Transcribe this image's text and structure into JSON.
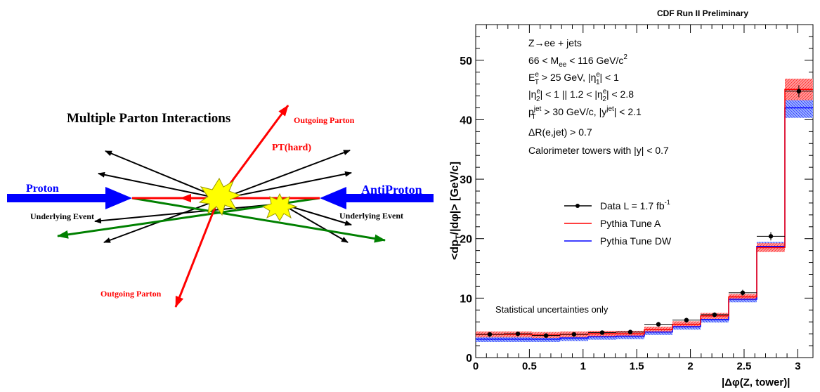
{
  "diagram": {
    "title": "Multiple Parton Interactions",
    "proton_label": "Proton",
    "antiproton_label": "AntiProton",
    "ue_left": "Underlying Event",
    "ue_right": "Underlying Event",
    "outgoing_top": "Outgoing Parton",
    "outgoing_bottom": "Outgoing Parton",
    "pt_hard": "PT(hard)",
    "colors": {
      "beam": "#0000ff",
      "hard": "#ff0000",
      "green": "#008000",
      "black": "#000000",
      "star": "#ffff00"
    }
  },
  "chart_data": {
    "type": "line",
    "header": "CDF Run II Preliminary",
    "xlabel": "|Δφ(Z, tower)|",
    "ylabel": "<dp_T/|dφ|>  [GeV/c]",
    "xlim": [
      0,
      3.1416
    ],
    "ylim": [
      0,
      56
    ],
    "x_ticks": [
      "0",
      "0.5",
      "1",
      "1.5",
      "2",
      "2.5",
      "3"
    ],
    "x_tick_values": [
      0,
      0.5,
      1,
      1.5,
      2,
      2.5,
      3
    ],
    "y_ticks": [
      "0",
      "10",
      "20",
      "30",
      "40",
      "50"
    ],
    "y_tick_values": [
      0,
      10,
      20,
      30,
      40,
      50
    ],
    "bin_edges": [
      0,
      0.2618,
      0.5236,
      0.7854,
      1.0472,
      1.309,
      1.5708,
      1.8326,
      2.0944,
      2.3562,
      2.618,
      2.8798,
      3.1416
    ],
    "legend": [
      {
        "label": "Data  L = 1.7 fb",
        "sup": "-1",
        "color": "#000000",
        "marker": "dot"
      },
      {
        "label": "Pythia Tune A",
        "color": "#ff0000",
        "marker": "line"
      },
      {
        "label": "Pythia Tune DW",
        "color": "#0000ff",
        "marker": "line"
      }
    ],
    "series": [
      {
        "name": "Data  L = 1.7 fb-1",
        "x": [
          0.131,
          0.393,
          0.655,
          0.916,
          1.178,
          1.44,
          1.702,
          1.963,
          2.225,
          2.487,
          2.749,
          3.01
        ],
        "values": [
          3.9,
          4.0,
          3.7,
          3.9,
          4.2,
          4.3,
          5.6,
          6.3,
          7.2,
          10.9,
          20.4,
          44.8
        ],
        "errors": [
          0.3,
          0.3,
          0.3,
          0.3,
          0.3,
          0.3,
          0.4,
          0.4,
          0.4,
          0.5,
          0.7,
          1.0
        ]
      },
      {
        "name": "Pythia Tune A",
        "values": [
          3.9,
          3.9,
          3.8,
          3.9,
          4.0,
          4.0,
          4.7,
          5.6,
          7.0,
          10.2,
          18.5,
          45.1
        ]
      },
      {
        "name": "Pythia Tune DW",
        "values": [
          3.1,
          3.1,
          3.1,
          3.3,
          3.5,
          3.6,
          4.3,
          5.2,
          6.4,
          9.8,
          18.7,
          42.0
        ]
      }
    ],
    "annotations": {
      "line1": "Z→ee + jets",
      "line2_a": "66 < M",
      "line2_sub": "ee",
      "line2_b": " < 116 GeV/c",
      "line2_sup": "2",
      "line3_a": "E",
      "line3_sup": "e",
      "line3_sub": "T",
      "line3_b": " > 25 GeV, |η",
      "line3_sup2": "e",
      "line3_sub2": "1",
      "line3_c": "| < 1",
      "line4_a": "|η",
      "line4_sup": "e",
      "line4_sub": "2",
      "line4_b": "| < 1  ||  1.2 < |η",
      "line4_sup2": "e",
      "line4_sub2": "2",
      "line4_c": "| < 2.8",
      "line5_a": "p",
      "line5_sup": "jet",
      "line5_sub": "T",
      "line5_b": " > 30 GeV/c, |y",
      "line5_sup2": "jet",
      "line5_c": "| < 2.1",
      "line6": "ΔR(e,jet) > 0.7",
      "line7": "Calorimeter towers with |y| < 0.7",
      "stat": "Statistical uncertainties only"
    }
  }
}
